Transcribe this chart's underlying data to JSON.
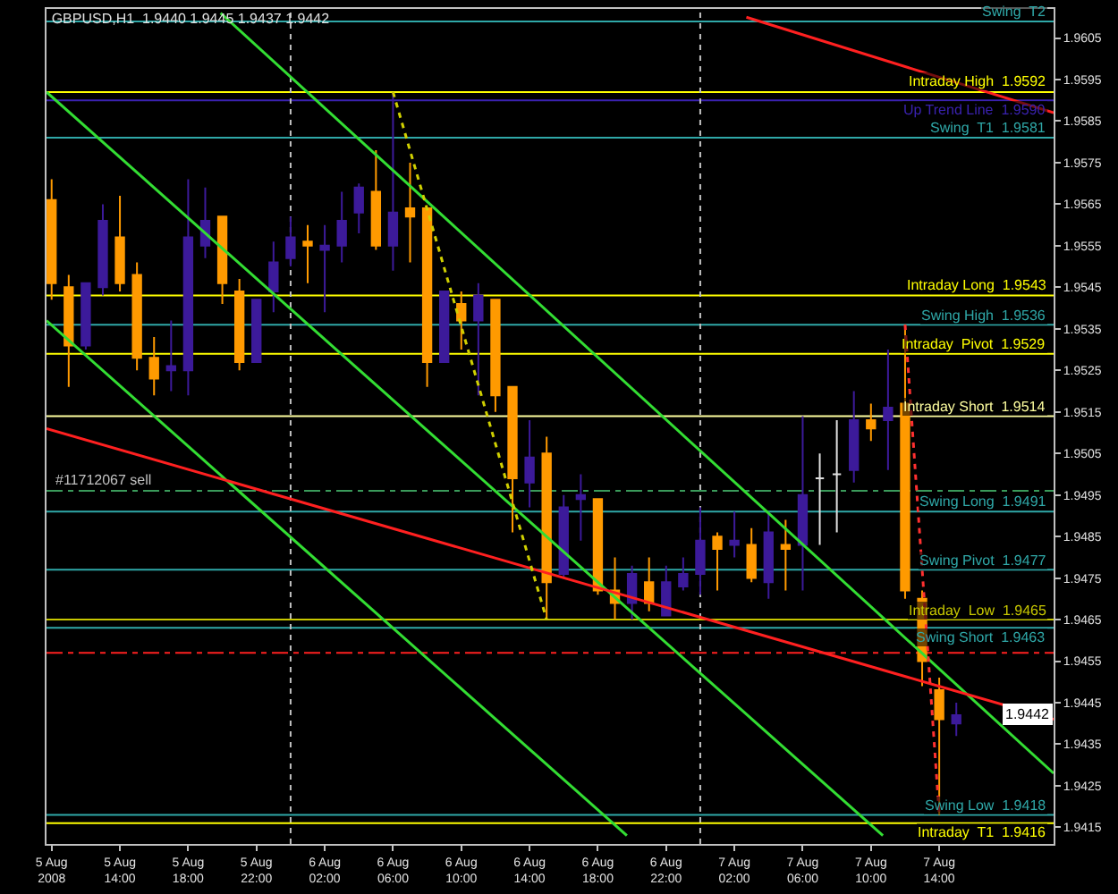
{
  "chart_data": {
    "type": "candlestick",
    "title": "GBPUSD,H1  1.9440 1.9445 1.9437 1.9442",
    "x": [
      "2008-08-05T10:00",
      "2008-08-05T11:00",
      "2008-08-05T12:00",
      "2008-08-05T13:00",
      "2008-08-05T14:00",
      "2008-08-05T15:00",
      "2008-08-05T16:00",
      "2008-08-05T17:00",
      "2008-08-05T18:00",
      "2008-08-05T19:00",
      "2008-08-05T20:00",
      "2008-08-05T21:00",
      "2008-08-05T22:00",
      "2008-08-05T23:00",
      "2008-08-06T00:00",
      "2008-08-06T01:00",
      "2008-08-06T02:00",
      "2008-08-06T03:00",
      "2008-08-06T04:00",
      "2008-08-06T05:00",
      "2008-08-06T06:00",
      "2008-08-06T07:00",
      "2008-08-06T08:00",
      "2008-08-06T09:00",
      "2008-08-06T10:00",
      "2008-08-06T11:00",
      "2008-08-06T12:00",
      "2008-08-06T13:00",
      "2008-08-06T14:00",
      "2008-08-06T15:00",
      "2008-08-06T16:00",
      "2008-08-06T17:00",
      "2008-08-06T18:00",
      "2008-08-06T19:00",
      "2008-08-06T20:00",
      "2008-08-06T21:00",
      "2008-08-06T22:00",
      "2008-08-06T23:00",
      "2008-08-07T00:00",
      "2008-08-07T01:00",
      "2008-08-07T02:00",
      "2008-08-07T03:00",
      "2008-08-07T04:00",
      "2008-08-07T05:00",
      "2008-08-07T06:00",
      "2008-08-07T07:00",
      "2008-08-07T08:00",
      "2008-08-07T09:00",
      "2008-08-07T10:00",
      "2008-08-07T11:00",
      "2008-08-07T12:00",
      "2008-08-07T13:00",
      "2008-08-07T14:00",
      "2008-08-07T15:00"
    ],
    "ohlc": [
      [
        1.9566,
        1.9571,
        1.9542,
        1.9546
      ],
      [
        1.9545,
        1.9548,
        1.9521,
        1.9531
      ],
      [
        1.9531,
        1.9546,
        1.953,
        1.9546
      ],
      [
        1.9545,
        1.9565,
        1.9543,
        1.9561
      ],
      [
        1.9557,
        1.9567,
        1.9544,
        1.9546
      ],
      [
        1.9548,
        1.9551,
        1.9525,
        1.9528
      ],
      [
        1.9528,
        1.9533,
        1.9519,
        1.9523
      ],
      [
        1.9525,
        1.9537,
        1.952,
        1.9526
      ],
      [
        1.9525,
        1.9571,
        1.9519,
        1.9557
      ],
      [
        1.9555,
        1.9569,
        1.9552,
        1.9561
      ],
      [
        1.9562,
        1.9562,
        1.9541,
        1.9546
      ],
      [
        1.9544,
        1.9547,
        1.9525,
        1.9527
      ],
      [
        1.9527,
        1.9542,
        1.9527,
        1.9542
      ],
      [
        1.9544,
        1.9556,
        1.9539,
        1.9551
      ],
      [
        1.9552,
        1.9562,
        1.955,
        1.9557
      ],
      [
        1.9556,
        1.956,
        1.9546,
        1.9555
      ],
      [
        1.9554,
        1.956,
        1.9539,
        1.9555
      ],
      [
        1.9555,
        1.9568,
        1.9551,
        1.9561
      ],
      [
        1.9563,
        1.957,
        1.9558,
        1.9569
      ],
      [
        1.9568,
        1.9578,
        1.9554,
        1.9555
      ],
      [
        1.9555,
        1.9592,
        1.9549,
        1.9563
      ],
      [
        1.9564,
        1.9575,
        1.9551,
        1.9562
      ],
      [
        1.9564,
        1.9564,
        1.9521,
        1.9527
      ],
      [
        1.9527,
        1.9544,
        1.9527,
        1.9544
      ],
      [
        1.9541,
        1.9544,
        1.953,
        1.9537
      ],
      [
        1.9537,
        1.9546,
        1.9519,
        1.9543
      ],
      [
        1.9542,
        1.9542,
        1.9515,
        1.9519
      ],
      [
        1.9521,
        1.9521,
        1.9486,
        1.9499
      ],
      [
        1.9498,
        1.9513,
        1.9492,
        1.9504
      ],
      [
        1.9505,
        1.9509,
        1.9465,
        1.9474
      ],
      [
        1.9476,
        1.9495,
        1.9475,
        1.9492
      ],
      [
        1.9494,
        1.95,
        1.9484,
        1.9495
      ],
      [
        1.9494,
        1.9494,
        1.9471,
        1.9472
      ],
      [
        1.9472,
        1.948,
        1.9465,
        1.9469
      ],
      [
        1.9469,
        1.9478,
        1.9465,
        1.9476
      ],
      [
        1.9474,
        1.948,
        1.9467,
        1.9469
      ],
      [
        1.9466,
        1.9478,
        1.9466,
        1.9474
      ],
      [
        1.9473,
        1.948,
        1.9472,
        1.9476
      ],
      [
        1.9476,
        1.9492,
        1.9471,
        1.9484
      ],
      [
        1.9485,
        1.9486,
        1.9472,
        1.9482
      ],
      [
        1.9483,
        1.9491,
        1.948,
        1.9484
      ],
      [
        1.9483,
        1.9487,
        1.9474,
        1.9475
      ],
      [
        1.9474,
        1.9491,
        1.947,
        1.9486
      ],
      [
        1.9483,
        1.9489,
        1.9472,
        1.9482
      ],
      [
        1.9483,
        1.9514,
        1.9472,
        1.9495
      ],
      [
        1.9499,
        1.9505,
        1.9483,
        1.9499
      ],
      [
        1.95,
        1.9513,
        1.9486,
        1.95
      ],
      [
        1.9501,
        1.952,
        1.9498,
        1.9513
      ],
      [
        1.9513,
        1.9517,
        1.9508,
        1.9511
      ],
      [
        1.9513,
        1.953,
        1.9501,
        1.9516
      ],
      [
        1.9517,
        1.9536,
        1.947,
        1.9472
      ],
      [
        1.947,
        1.9472,
        1.9449,
        1.9455
      ],
      [
        1.9448,
        1.9451,
        1.9418,
        1.9441
      ],
      [
        1.944,
        1.9445,
        1.9437,
        1.9442
      ]
    ],
    "colors": [
      "#ff9a00",
      "#ff9a00",
      "#3c1a9a",
      "#3c1a9a",
      "#ff9a00",
      "#ff9a00",
      "#ff9a00",
      "#3c1a9a",
      "#3c1a9a",
      "#3c1a9a",
      "#ff9a00",
      "#ff9a00",
      "#3c1a9a",
      "#3c1a9a",
      "#3c1a9a",
      "#ff9a00",
      "#3c1a9a",
      "#3c1a9a",
      "#3c1a9a",
      "#ff9a00",
      "#3c1a9a",
      "#ff9a00",
      "#ff9a00",
      "#3c1a9a",
      "#ff9a00",
      "#3c1a9a",
      "#ff9a00",
      "#ff9a00",
      "#3c1a9a",
      "#ff9a00",
      "#3c1a9a",
      "#3c1a9a",
      "#ff9a00",
      "#ff9a00",
      "#3c1a9a",
      "#ff9a00",
      "#3c1a9a",
      "#3c1a9a",
      "#3c1a9a",
      "#ff9a00",
      "#3c1a9a",
      "#ff9a00",
      "#3c1a9a",
      "#ff9a00",
      "#3c1a9a",
      "#e0e0e0",
      "#e0e0e0",
      "#3c1a9a",
      "#ff9a00",
      "#3c1a9a",
      "#ff9a00",
      "#ff9a00",
      "#ff9a00",
      "#3c1a9a"
    ],
    "series": [
      {
        "type": "line",
        "color": "#33dd33",
        "line_style": "solid",
        "x": [
          "2008-08-05T19:54",
          "2008-08-07T20:42"
        ],
        "values": [
          1.9611,
          1.9428
        ]
      },
      {
        "type": "line",
        "color": "#33dd33",
        "line_style": "solid",
        "x": [
          "2008-08-05T09:42",
          "2008-08-07T10:42"
        ],
        "values": [
          1.9592,
          1.9413
        ]
      },
      {
        "type": "line",
        "color": "#33dd33",
        "line_style": "solid",
        "x": [
          "2008-08-05T09:42",
          "2008-08-06T19:42"
        ],
        "values": [
          1.9537,
          1.9413
        ]
      },
      {
        "type": "line",
        "color": "#ff2020",
        "line_style": "solid",
        "x": [
          "2008-08-05T09:42",
          "2008-08-07T20:42"
        ],
        "values": [
          1.9511,
          1.9441
        ]
      },
      {
        "type": "line",
        "color": "#ff2020",
        "line_style": "solid",
        "x": [
          "2008-08-07T02:42",
          "2008-08-07T20:42"
        ],
        "values": [
          1.961,
          1.9587
        ]
      },
      {
        "type": "line",
        "color": "#d0d000",
        "line_style": "dotted",
        "x": [
          "2008-08-06T06:00",
          "2008-08-06T15:00"
        ],
        "values": [
          1.9592,
          1.9465
        ]
      },
      {
        "type": "line",
        "color": "#ff3030",
        "line_style": "dotted",
        "x": [
          "2008-08-07T12:00",
          "2008-08-07T14:00"
        ],
        "values": [
          1.9536,
          1.9418
        ]
      }
    ],
    "ref_lines": [
      {
        "axis": "y",
        "value": 1.9609,
        "label": "Swing  T2",
        "color": "#2fa8a8",
        "line_style": "solid"
      },
      {
        "axis": "y",
        "value": 1.9592,
        "label": "Intraday High  1.9592",
        "color": "#ffff00",
        "line_style": "solid"
      },
      {
        "axis": "y",
        "value": 1.959,
        "label": "Up Trend Line  1.9590",
        "color": "#3a22b0",
        "line_style": "solid"
      },
      {
        "axis": "y",
        "value": 1.9581,
        "label": "Swing  T1  1.9581",
        "color": "#2fa8a8",
        "line_style": "solid"
      },
      {
        "axis": "y",
        "value": 1.9543,
        "label": "Intraday Long  1.9543",
        "color": "#ffff00",
        "line_style": "solid"
      },
      {
        "axis": "y",
        "value": 1.9536,
        "label": "Swing High  1.9536",
        "color": "#2fa8a8",
        "line_style": "solid"
      },
      {
        "axis": "y",
        "value": 1.9529,
        "label": "Intraday  Pivot  1.9529",
        "color": "#ffff00",
        "line_style": "solid"
      },
      {
        "axis": "y",
        "value": 1.9514,
        "label": "Intraday Short  1.9514",
        "color": "#ffffa0",
        "line_style": "solid"
      },
      {
        "axis": "y",
        "value": 1.9496,
        "color": "#3a9a5a",
        "line_style": "dashed"
      },
      {
        "axis": "y",
        "value": 1.9491,
        "label": "Swing Long  1.9491",
        "color": "#2fa8a8",
        "line_style": "solid"
      },
      {
        "axis": "y",
        "value": 1.9477,
        "label": "Swing Pivot  1.9477",
        "color": "#2fa8a8",
        "line_style": "solid"
      },
      {
        "axis": "y",
        "value": 1.9465,
        "label": "Intraday  Low  1.9465",
        "color": "#c8c800",
        "line_style": "solid"
      },
      {
        "axis": "y",
        "value": 1.9463,
        "label": "Swing Short  1.9463",
        "color": "#2fa8a8",
        "line_style": "solid"
      },
      {
        "axis": "y",
        "value": 1.9457,
        "color": "#ff2020",
        "line_style": "dashed"
      },
      {
        "axis": "y",
        "value": 1.9418,
        "label": "Swing Low  1.9418",
        "color": "#2fa8a8",
        "line_style": "solid"
      },
      {
        "axis": "y",
        "value": 1.9416,
        "label": "Intraday  T1  1.9416",
        "color": "#ffff00",
        "line_style": "solid"
      },
      {
        "axis": "x",
        "value": "2008-08-06T00:00",
        "color": "#c0c0c0",
        "line_style": "dotted"
      },
      {
        "axis": "x",
        "value": "2008-08-07T00:00",
        "color": "#c0c0c0",
        "line_style": "dotted"
      }
    ],
    "annotations": [
      {
        "text": "#11712067 sell",
        "x": "2008-08-05T10:00",
        "y": 1.9496
      },
      {
        "text": "1.9442",
        "x": "2008-08-07T20:42",
        "y": 1.9442
      }
    ],
    "xlim": [
      "2008-08-05T09:42",
      "2008-08-07T20:42"
    ],
    "xticks": [
      {
        "value": "2008-08-05T10:00",
        "label": "5 Aug 2008"
      },
      {
        "value": "2008-08-05T14:00",
        "label": "5 Aug 14:00"
      },
      {
        "value": "2008-08-05T18:00",
        "label": "5 Aug 18:00"
      },
      {
        "value": "2008-08-05T22:00",
        "label": "5 Aug 22:00"
      },
      {
        "value": "2008-08-06T02:00",
        "label": "6 Aug 02:00"
      },
      {
        "value": "2008-08-06T06:00",
        "label": "6 Aug 06:00"
      },
      {
        "value": "2008-08-06T10:00",
        "label": "6 Aug 10:00"
      },
      {
        "value": "2008-08-06T14:00",
        "label": "6 Aug 14:00"
      },
      {
        "value": "2008-08-06T18:00",
        "label": "6 Aug 18:00"
      },
      {
        "value": "2008-08-06T22:00",
        "label": "6 Aug 22:00"
      },
      {
        "value": "2008-08-07T02:00",
        "label": "7 Aug 02:00"
      },
      {
        "value": "2008-08-07T06:00",
        "label": "7 Aug 06:00"
      },
      {
        "value": "2008-08-07T10:00",
        "label": "7 Aug 10:00"
      },
      {
        "value": "2008-08-07T14:00",
        "label": "7 Aug 14:00"
      }
    ],
    "ylim": [
      1.9411,
      1.9612
    ],
    "yticks": [
      1.9415,
      1.9425,
      1.9435,
      1.9445,
      1.9455,
      1.9465,
      1.9475,
      1.9485,
      1.9495,
      1.9505,
      1.9515,
      1.9525,
      1.9535,
      1.9545,
      1.9555,
      1.9565,
      1.9575,
      1.9585,
      1.9595,
      1.9605
    ],
    "grid": false
  }
}
